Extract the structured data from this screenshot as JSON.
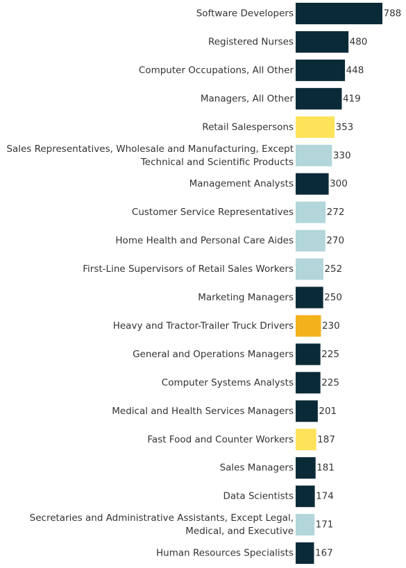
{
  "chart_data": {
    "type": "bar",
    "orientation": "horizontal",
    "title": "",
    "xlabel": "",
    "ylabel": "",
    "grid": false,
    "legend": "none",
    "colors": {
      "dark": "#0b2a38",
      "light_blue": "#b2d6da",
      "yellow": "#fde25a",
      "amber": "#f3b11c"
    },
    "categories": [
      [
        "Software Developers"
      ],
      [
        "Registered Nurses"
      ],
      [
        "Computer Occupations, All Other"
      ],
      [
        "Managers, All Other"
      ],
      [
        "Retail Salespersons"
      ],
      [
        "Sales Representatives, Wholesale and Manufacturing, Except",
        "Technical and Scientific Products"
      ],
      [
        "Management Analysts"
      ],
      [
        "Customer Service Representatives"
      ],
      [
        "Home Health and Personal Care Aides"
      ],
      [
        "First-Line Supervisors of Retail Sales Workers"
      ],
      [
        "Marketing Managers"
      ],
      [
        "Heavy and Tractor-Trailer Truck Drivers"
      ],
      [
        "General and Operations Managers"
      ],
      [
        "Computer Systems Analysts"
      ],
      [
        "Medical and Health Services Managers"
      ],
      [
        "Fast Food and Counter Workers"
      ],
      [
        "Sales Managers"
      ],
      [
        "Data Scientists"
      ],
      [
        "Secretaries and Administrative Assistants, Except Legal,",
        "Medical, and Executive"
      ],
      [
        "Human Resources Specialists"
      ]
    ],
    "values": [
      788,
      480,
      448,
      419,
      353,
      330,
      300,
      272,
      270,
      252,
      250,
      230,
      225,
      225,
      201,
      187,
      181,
      174,
      171,
      167
    ],
    "bar_colors": [
      "dark",
      "dark",
      "dark",
      "dark",
      "yellow",
      "light_blue",
      "dark",
      "light_blue",
      "light_blue",
      "light_blue",
      "dark",
      "amber",
      "dark",
      "dark",
      "dark",
      "yellow",
      "dark",
      "dark",
      "light_blue",
      "dark"
    ],
    "xlim": [
      0,
      788
    ]
  }
}
